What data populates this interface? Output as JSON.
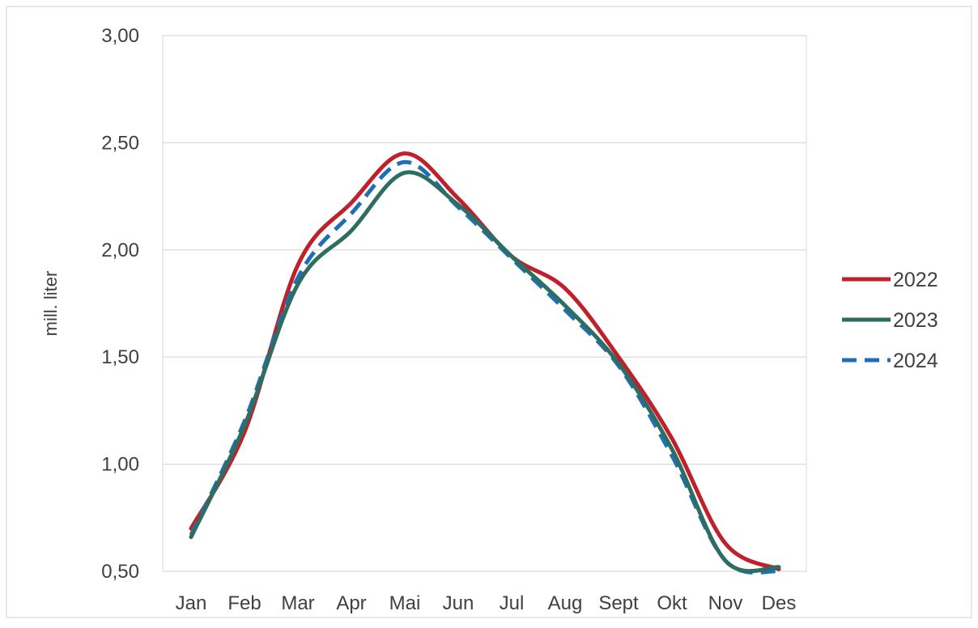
{
  "chart_data": {
    "type": "line",
    "title": "",
    "xlabel": "",
    "ylabel": "mill. liter",
    "categories": [
      "Jan",
      "Feb",
      "Mar",
      "Apr",
      "Mai",
      "Jun",
      "Jul",
      "Aug",
      "Sept",
      "Okt",
      "Nov",
      "Des"
    ],
    "y_ticks": [
      "0,50",
      "1,00",
      "1,50",
      "2,00",
      "2,50",
      "3,00"
    ],
    "ylim": [
      0.5,
      3.0
    ],
    "grid": "horizontal",
    "legend_position": "right",
    "series": [
      {
        "name": "2022",
        "color": "#C0202A",
        "dash": "solid",
        "values": [
          0.7,
          1.15,
          1.93,
          2.22,
          2.45,
          2.24,
          1.97,
          1.82,
          1.5,
          1.12,
          0.63,
          0.51
        ]
      },
      {
        "name": "2023",
        "color": "#2E6E62",
        "dash": "solid",
        "values": [
          0.66,
          1.18,
          1.84,
          2.09,
          2.36,
          2.21,
          1.97,
          1.74,
          1.47,
          1.07,
          0.55,
          0.52
        ]
      },
      {
        "name": "2024",
        "color": "#1F6FB8",
        "dash": "dashed",
        "values": [
          0.67,
          1.2,
          1.87,
          2.17,
          2.41,
          2.2,
          1.96,
          1.72,
          1.46,
          1.04,
          0.55,
          0.5
        ]
      }
    ]
  }
}
